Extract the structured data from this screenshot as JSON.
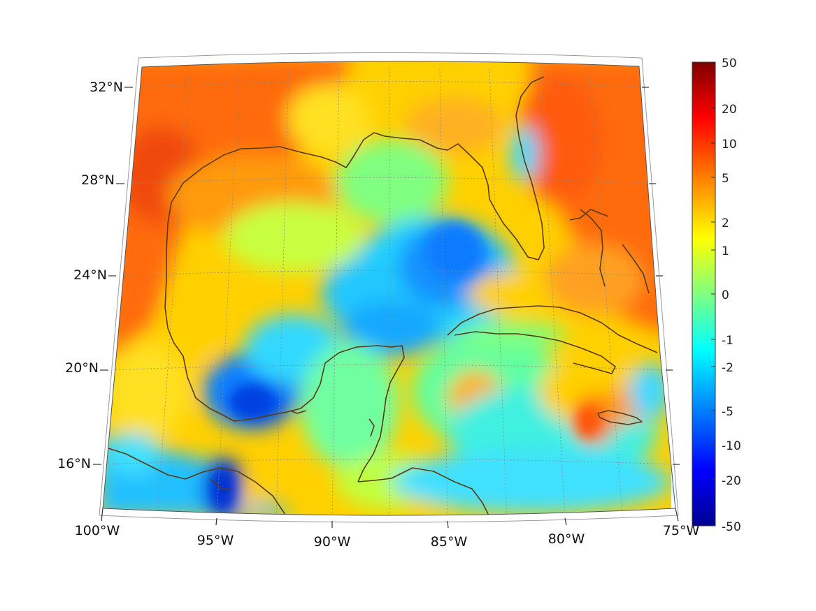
{
  "map": {
    "projection": "conic",
    "region": "Gulf of Mexico and Caribbean",
    "coastline_color": "#5a3a12",
    "graticule_style": "dotted",
    "colormap": "jet",
    "lon_labels": [
      "100°W",
      "95°W",
      "90°W",
      "85°W",
      "80°W",
      "75°W"
    ],
    "lat_labels": [
      "32°N",
      "28°N",
      "24°N",
      "20°N",
      "16°N"
    ]
  },
  "colorbar": {
    "labels": [
      "50",
      "20",
      "10",
      "5",
      "2",
      "1",
      "0",
      "-1",
      "-2",
      "-5",
      "-10",
      "-20",
      "-50"
    ],
    "colors": [
      "#7f0000",
      "#ff0000",
      "#ff8000",
      "#ffff00",
      "#80ff80",
      "#00ffff",
      "#0080ff",
      "#0000ff",
      "#00008f"
    ]
  }
}
